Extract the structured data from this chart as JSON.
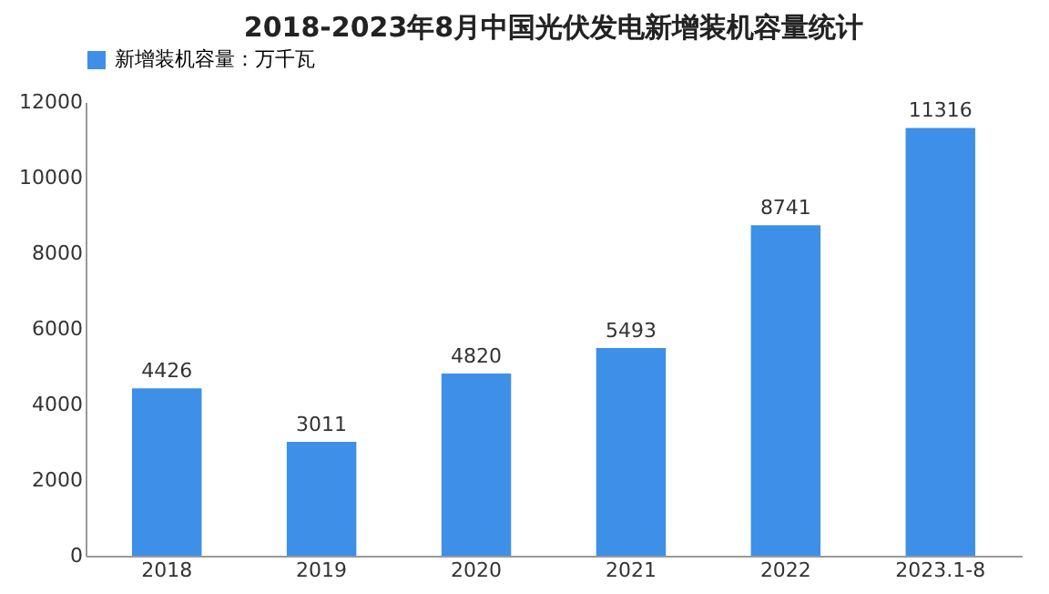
{
  "chart_data": {
    "type": "bar",
    "title": "2018-2023年8月中国光伏发电新增装机容量统计",
    "categories": [
      "2018",
      "2019",
      "2020",
      "2021",
      "2022",
      "2023.1-8"
    ],
    "series": [
      {
        "name": "新增装机容量：万千瓦",
        "color": "#3d8fe8",
        "values": [
          4426,
          3011,
          4820,
          5493,
          8741,
          11316
        ]
      }
    ],
    "ylim": [
      0,
      12000
    ],
    "yticks": [
      0,
      2000,
      4000,
      6000,
      8000,
      10000,
      12000
    ],
    "grid": false,
    "legend": "top",
    "data_labels": true
  }
}
